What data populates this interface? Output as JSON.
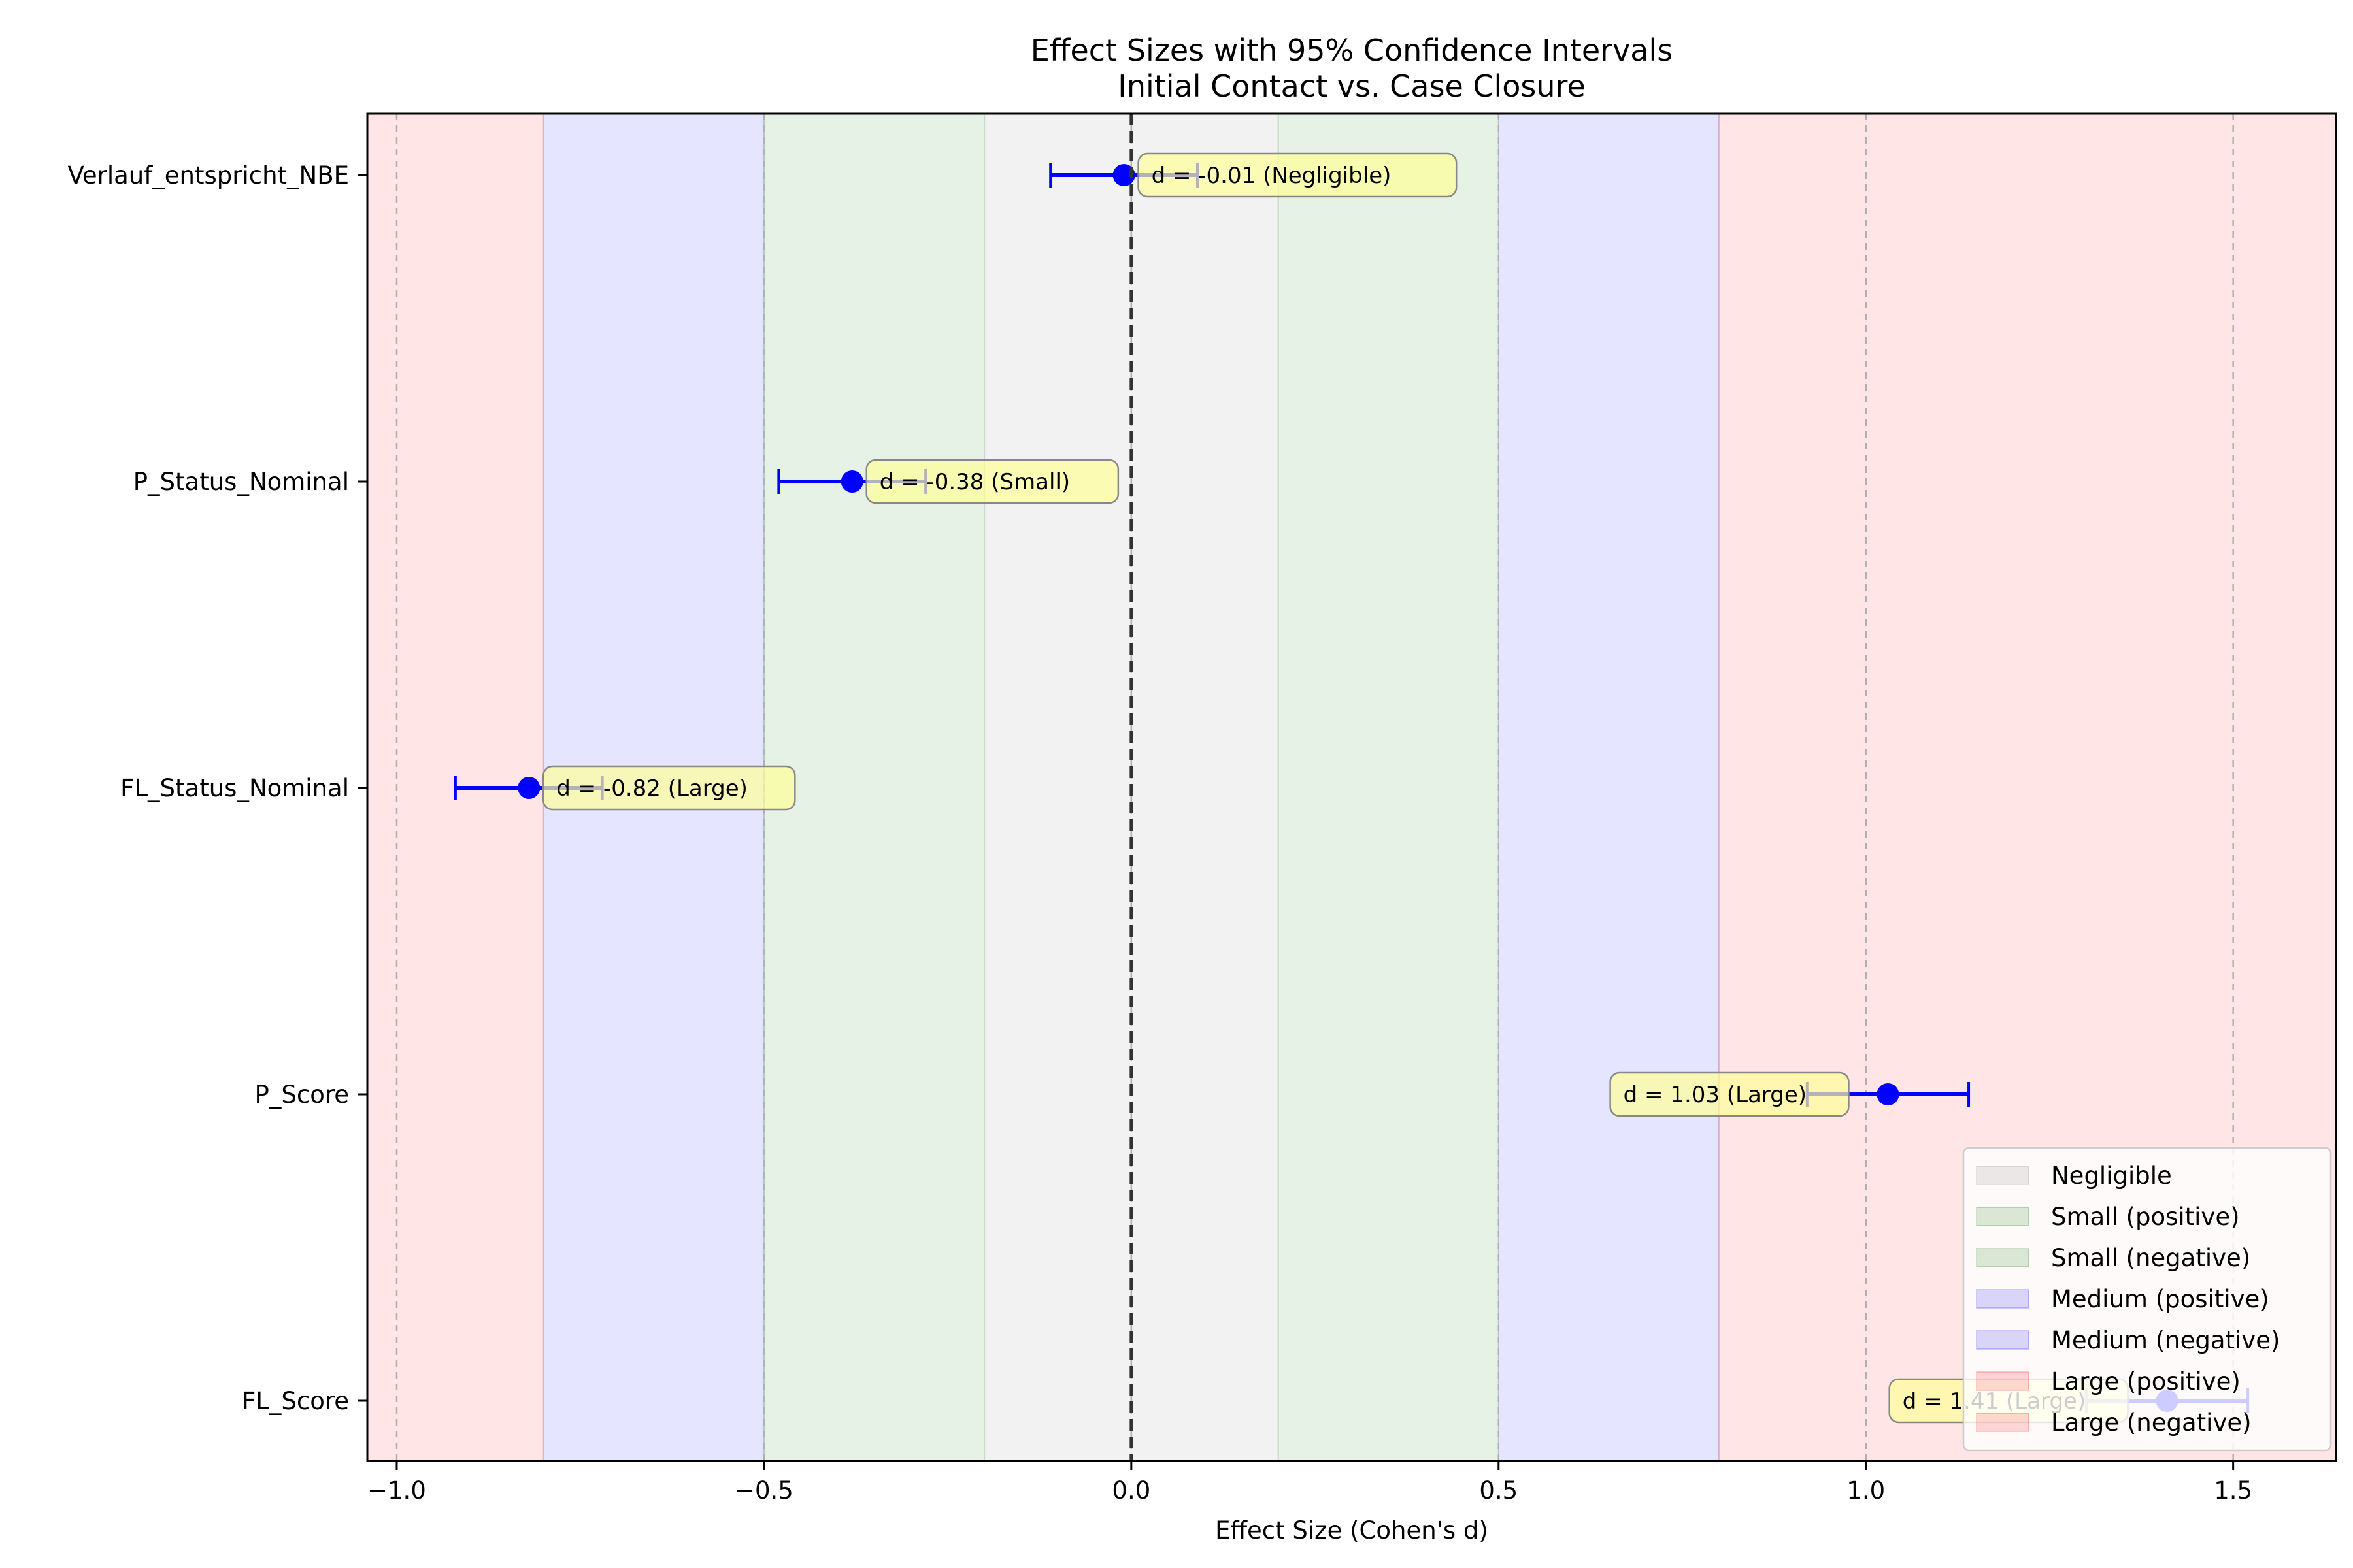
{
  "chart_data": {
    "type": "forest",
    "title": "Effect Sizes with 95% Confidence Intervals",
    "subtitle": "Initial Contact vs. Case Closure",
    "xlabel": "Effect Size (Cohen's d)",
    "ylabel": "",
    "xlim": [
      -1.04,
      1.64
    ],
    "xticks": [
      -1.0,
      -0.5,
      0.0,
      0.5,
      1.0,
      1.5
    ],
    "xtick_labels": [
      "−1.0",
      "−0.5",
      "0.0",
      "0.5",
      "1.0",
      "1.5"
    ],
    "grid": "vertical dashed at ticks",
    "reference_line": 0.0,
    "categories": [
      "Verlauf_entspricht_NBE",
      "P_Status_Nominal",
      "FL_Status_Nominal",
      "P_Score",
      "FL_Score"
    ],
    "points": [
      {
        "label": "Verlauf_entspricht_NBE",
        "d": -0.01,
        "ci_low": -0.11,
        "ci_high": 0.09,
        "annotation": "d = -0.01 (Negligible)"
      },
      {
        "label": "P_Status_Nominal",
        "d": -0.38,
        "ci_low": -0.48,
        "ci_high": -0.28,
        "annotation": "d = -0.38 (Small)"
      },
      {
        "label": "FL_Status_Nominal",
        "d": -0.82,
        "ci_low": -0.92,
        "ci_high": -0.72,
        "annotation": "d = -0.82 (Large)"
      },
      {
        "label": "P_Score",
        "d": 1.03,
        "ci_low": 0.92,
        "ci_high": 1.14,
        "annotation": "d = 1.03 (Large)"
      },
      {
        "label": "FL_Score",
        "d": 1.41,
        "ci_low": 1.3,
        "ci_high": 1.52,
        "annotation": "d = 1.41 (Large)"
      }
    ],
    "bands": [
      {
        "name": "Negligible",
        "from": -0.2,
        "to": 0.2,
        "color": "#808080",
        "alpha": 0.1
      },
      {
        "name": "Small (positive)",
        "from": 0.2,
        "to": 0.5,
        "color": "#008000",
        "alpha": 0.1
      },
      {
        "name": "Small (negative)",
        "from": -0.5,
        "to": -0.2,
        "color": "#008000",
        "alpha": 0.1
      },
      {
        "name": "Medium (positive)",
        "from": 0.5,
        "to": 0.8,
        "color": "#0000ff",
        "alpha": 0.1
      },
      {
        "name": "Medium (negative)",
        "from": -0.8,
        "to": -0.5,
        "color": "#0000ff",
        "alpha": 0.1
      },
      {
        "name": "Large (positive)",
        "from": 0.8,
        "to": 1.64,
        "color": "#ff0000",
        "alpha": 0.1
      },
      {
        "name": "Large (negative)",
        "from": -1.04,
        "to": -0.8,
        "color": "#ff0000",
        "alpha": 0.1
      }
    ],
    "legend": {
      "position": "bottom-right",
      "entries": [
        "Negligible",
        "Small (positive)",
        "Small (negative)",
        "Medium (positive)",
        "Medium (negative)",
        "Large (positive)",
        "Large (negative)"
      ]
    },
    "colors": {
      "point": "#0000ff",
      "zero_line": "#333333",
      "annotation_fill": "#ffff99",
      "annotation_edge": "#888888"
    }
  }
}
